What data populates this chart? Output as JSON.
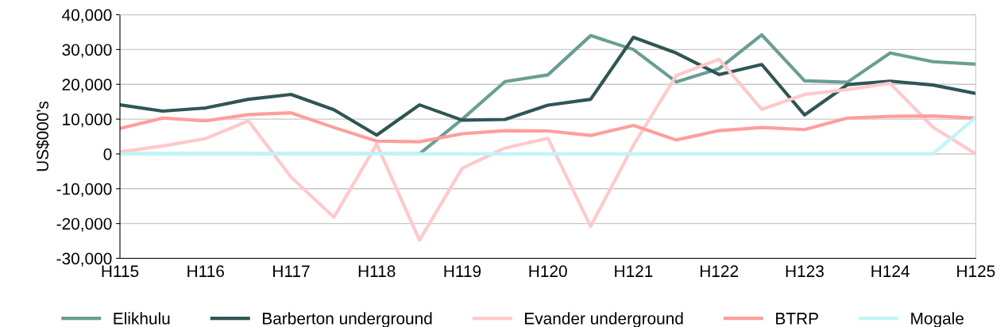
{
  "chart_data": {
    "type": "line",
    "ylabel": "US$000's",
    "categories": [
      "H115",
      null,
      "H116",
      null,
      "H117",
      null,
      "H118",
      null,
      "H119",
      null,
      "H120",
      null,
      "H121",
      null,
      "H122",
      null,
      "H123",
      null,
      "H124",
      null,
      "H125"
    ],
    "series": [
      {
        "name": "Elikhulu",
        "color": "#6a9e94",
        "values": [
          0,
          0,
          0,
          0,
          0,
          0,
          0,
          0,
          10000,
          20800,
          22700,
          34000,
          30000,
          20700,
          24500,
          34200,
          21000,
          20600,
          29000,
          26500,
          25800
        ]
      },
      {
        "name": "Barberton underground",
        "color": "#2f5654",
        "values": [
          14100,
          12300,
          13200,
          15700,
          17100,
          12700,
          5400,
          14100,
          9700,
          9900,
          14000,
          15700,
          33500,
          29000,
          22800,
          25700,
          11200,
          19900,
          20900,
          19800,
          17400
        ]
      },
      {
        "name": "Evander underground",
        "color": "#ffc9cc",
        "values": [
          600,
          2300,
          4400,
          9500,
          -6700,
          -18200,
          2800,
          -24800,
          -4100,
          1700,
          4500,
          -20800,
          2500,
          22500,
          27200,
          12800,
          17100,
          18500,
          20300,
          7700,
          0
        ]
      },
      {
        "name": "BTRP",
        "color": "#ff9e9e",
        "values": [
          7300,
          10300,
          9500,
          11300,
          11800,
          7600,
          3700,
          3500,
          5800,
          6700,
          6600,
          5300,
          8200,
          4000,
          6700,
          7600,
          7000,
          10300,
          10800,
          10900,
          10300
        ]
      },
      {
        "name": "Mogale",
        "color": "#bff5f7",
        "values": [
          0,
          0,
          0,
          0,
          0,
          0,
          0,
          0,
          0,
          0,
          0,
          0,
          0,
          0,
          0,
          0,
          0,
          0,
          0,
          0,
          10500
        ]
      }
    ],
    "ylim": [
      -30000,
      40000
    ],
    "yticks": [
      {
        "value": -30000,
        "label": "-30,000"
      },
      {
        "value": -20000,
        "label": "-20,000"
      },
      {
        "value": -10000,
        "label": "-10,000"
      },
      0,
      {
        "value": 10000,
        "label": "10,000"
      },
      {
        "value": 20000,
        "label": "20,000"
      },
      {
        "value": 30000,
        "label": "30,000"
      },
      {
        "value": 40000,
        "label": "40,000"
      }
    ],
    "grid": "y",
    "legend": "bottom",
    "marker": "none",
    "line_style": "solid"
  }
}
